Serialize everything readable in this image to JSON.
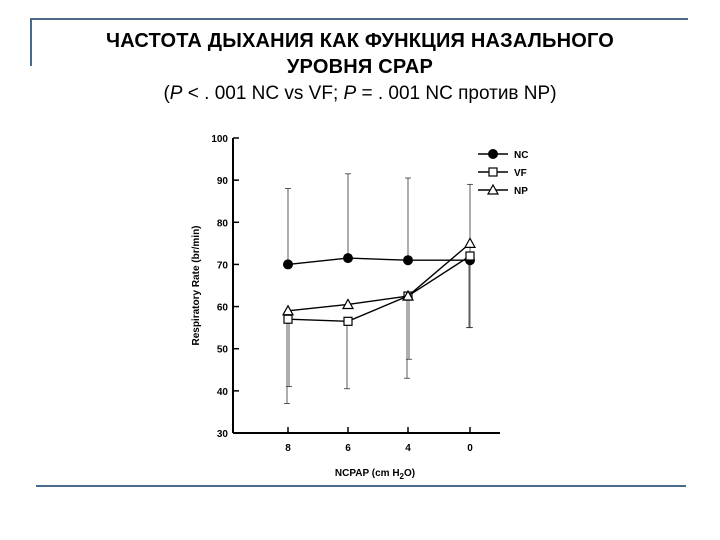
{
  "title": {
    "line1": "ЧАСТОТА ДЫХАНИЯ КАК ФУНКЦИЯ НАЗАЛЬНОГО",
    "line2": "УРОВНЯ CPAP",
    "sub_open": "(",
    "sub_p1": "P",
    "sub_mid1": " < . 001 NC vs VF; ",
    "sub_p2": "P",
    "sub_mid2": " = . 001 NC против NP)"
  },
  "chart_data": {
    "type": "line",
    "x": [
      "8",
      "6",
      "4",
      "0"
    ],
    "xlabel": "NCPAP (cm H2O)",
    "xlabel_main": "NCPAP (cm H",
    "xlabel_sub": "2",
    "xlabel_end": "O)",
    "ylabel": "Respiratory Rate (br/min)",
    "ylim": [
      30,
      100
    ],
    "yticks": [
      30,
      40,
      50,
      60,
      70,
      80,
      90,
      100
    ],
    "legend_position": "top-right",
    "series": [
      {
        "name": "NC",
        "marker": "filled-circle",
        "values": [
          70,
          71.5,
          71,
          71
        ],
        "err_lower": [
          null,
          null,
          null,
          55
        ],
        "err_upper": [
          88,
          91.5,
          90.5,
          89
        ]
      },
      {
        "name": "VF",
        "marker": "open-square",
        "values": [
          57,
          56.5,
          62.5,
          72
        ],
        "err_lower": [
          37,
          40.5,
          43,
          55
        ],
        "err_upper": [
          null,
          null,
          null,
          null
        ]
      },
      {
        "name": "NP",
        "marker": "open-triangle",
        "values": [
          59,
          60.5,
          62.5,
          75
        ],
        "err_lower": [
          41,
          null,
          47.5,
          null
        ],
        "err_upper": [
          null,
          null,
          null,
          null
        ]
      }
    ]
  }
}
